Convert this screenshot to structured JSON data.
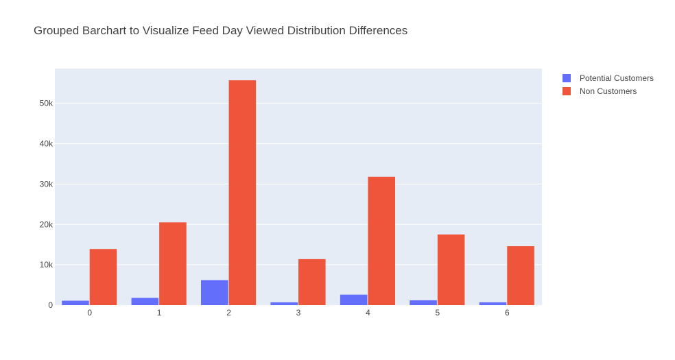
{
  "chart_data": {
    "type": "bar",
    "title": "Grouped Barchart to Visualize Feed Day Viewed Distribution Differences",
    "xlabel": "",
    "ylabel": "",
    "categories": [
      "0",
      "1",
      "2",
      "3",
      "4",
      "5",
      "6"
    ],
    "series": [
      {
        "name": "Potential Customers",
        "color": "#636efa",
        "values": [
          1100,
          1800,
          6200,
          700,
          2600,
          1200,
          700
        ]
      },
      {
        "name": "Non Customers",
        "color": "#ef553b",
        "values": [
          13900,
          20500,
          55700,
          11400,
          31800,
          17500,
          14600
        ]
      }
    ],
    "ylim": [
      0,
      58600
    ],
    "yticks": [
      0,
      10000,
      20000,
      30000,
      40000,
      50000
    ],
    "ytick_labels": [
      "0",
      "10k",
      "20k",
      "30k",
      "40k",
      "50k"
    ],
    "grid": true,
    "legend_position": "top-right",
    "plot_background": "#e5ecf6"
  }
}
